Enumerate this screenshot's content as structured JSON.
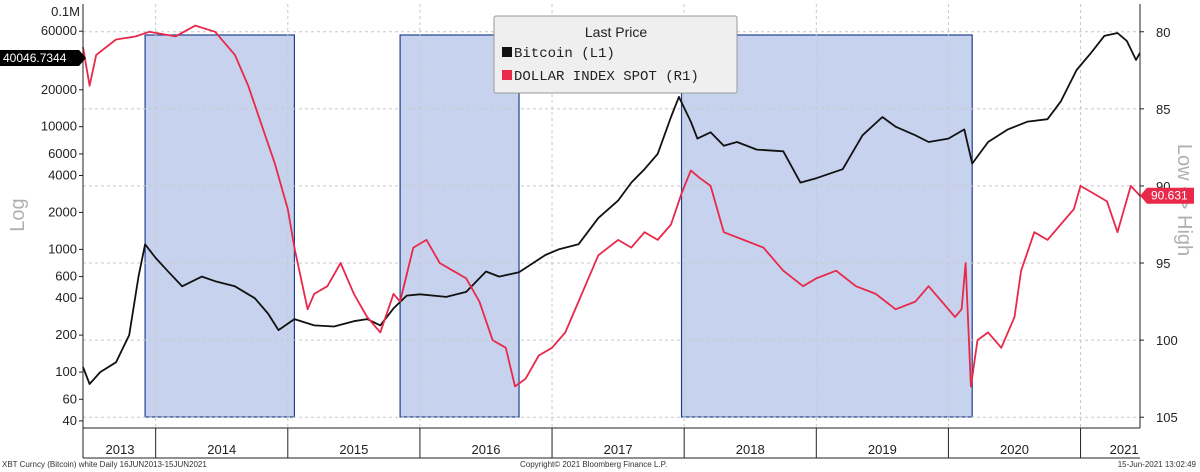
{
  "chart_data": {
    "type": "line",
    "title": "Last Price",
    "y_left_label": "Log",
    "y_right_label": "Low <> High",
    "y_left_top_label": "0.1M",
    "y_left_ticks": [
      40,
      60,
      100,
      200,
      400,
      600,
      1000,
      2000,
      4000,
      6000,
      10000,
      20000,
      60000
    ],
    "y_left_tick_labels": [
      "40",
      "60",
      "100",
      "200",
      "400",
      "600",
      "1000",
      "2000",
      "4000",
      "6000",
      "10000",
      "20000",
      "60000"
    ],
    "y_left_range": [
      35,
      100000
    ],
    "y_right_ticks": [
      80,
      85,
      90,
      95,
      100,
      105
    ],
    "y_right_tick_labels": [
      "80",
      "85",
      "90",
      "95",
      "100",
      "105"
    ],
    "y_right_range": [
      78.2,
      105.7
    ],
    "y_right_inverted": true,
    "x_range": [
      2013.45,
      2021.45
    ],
    "x_year_labels": [
      "2013",
      "2014",
      "2015",
      "2016",
      "2017",
      "2018",
      "2019",
      "2020",
      "2021"
    ],
    "x_year_positions": [
      2013.73,
      2014.5,
      2015.5,
      2016.5,
      2017.5,
      2018.5,
      2019.5,
      2020.5,
      2021.33
    ],
    "x_year_dividers": [
      2014,
      2015,
      2016,
      2017,
      2018,
      2019,
      2020,
      2021
    ],
    "shaded_periods": [
      [
        2013.92,
        2015.05
      ],
      [
        2015.85,
        2016.75
      ],
      [
        2017.98,
        2020.18
      ]
    ],
    "legend": {
      "title": "Last Price",
      "entries": [
        {
          "name": "Bitcoin  (L1)",
          "color": "#111111"
        },
        {
          "name": "DOLLAR INDEX SPOT  (R1)",
          "color": "#e8294a"
        }
      ]
    },
    "last_values": {
      "bitcoin": {
        "label": "40046.7344",
        "value": 40046.7344,
        "color": "#000000"
      },
      "dollar": {
        "label": "90.631",
        "value": 90.631,
        "color": "#e8294a"
      }
    },
    "series": [
      {
        "name": "Bitcoin (L1)",
        "axis": "left",
        "color": "#111111",
        "points": [
          [
            2013.45,
            110
          ],
          [
            2013.5,
            80
          ],
          [
            2013.58,
            100
          ],
          [
            2013.7,
            120
          ],
          [
            2013.8,
            200
          ],
          [
            2013.87,
            600
          ],
          [
            2013.92,
            1100
          ],
          [
            2014.0,
            850
          ],
          [
            2014.1,
            650
          ],
          [
            2014.2,
            500
          ],
          [
            2014.35,
            600
          ],
          [
            2014.45,
            550
          ],
          [
            2014.6,
            500
          ],
          [
            2014.75,
            400
          ],
          [
            2014.85,
            300
          ],
          [
            2014.93,
            220
          ],
          [
            2015.05,
            270
          ],
          [
            2015.2,
            240
          ],
          [
            2015.35,
            235
          ],
          [
            2015.5,
            260
          ],
          [
            2015.6,
            270
          ],
          [
            2015.7,
            240
          ],
          [
            2015.8,
            330
          ],
          [
            2015.9,
            420
          ],
          [
            2016.0,
            430
          ],
          [
            2016.2,
            410
          ],
          [
            2016.35,
            450
          ],
          [
            2016.5,
            660
          ],
          [
            2016.6,
            600
          ],
          [
            2016.75,
            650
          ],
          [
            2016.95,
            900
          ],
          [
            2017.05,
            1000
          ],
          [
            2017.2,
            1100
          ],
          [
            2017.35,
            1800
          ],
          [
            2017.5,
            2500
          ],
          [
            2017.6,
            3500
          ],
          [
            2017.7,
            4500
          ],
          [
            2017.8,
            6000
          ],
          [
            2017.9,
            12000
          ],
          [
            2017.96,
            17500
          ],
          [
            2018.05,
            11000
          ],
          [
            2018.1,
            8000
          ],
          [
            2018.2,
            9000
          ],
          [
            2018.3,
            7000
          ],
          [
            2018.4,
            7500
          ],
          [
            2018.55,
            6500
          ],
          [
            2018.75,
            6300
          ],
          [
            2018.88,
            3500
          ],
          [
            2019.0,
            3800
          ],
          [
            2019.2,
            4500
          ],
          [
            2019.35,
            8500
          ],
          [
            2019.5,
            12000
          ],
          [
            2019.6,
            10000
          ],
          [
            2019.75,
            8500
          ],
          [
            2019.85,
            7500
          ],
          [
            2020.0,
            8000
          ],
          [
            2020.12,
            9500
          ],
          [
            2020.18,
            5000
          ],
          [
            2020.3,
            7500
          ],
          [
            2020.45,
            9500
          ],
          [
            2020.6,
            11000
          ],
          [
            2020.75,
            11500
          ],
          [
            2020.85,
            16000
          ],
          [
            2020.97,
            29000
          ],
          [
            2021.08,
            40000
          ],
          [
            2021.18,
            55000
          ],
          [
            2021.28,
            58000
          ],
          [
            2021.35,
            50000
          ],
          [
            2021.42,
            35000
          ],
          [
            2021.45,
            40046.7344
          ]
        ]
      },
      {
        "name": "DOLLAR INDEX SPOT (R1)",
        "axis": "right",
        "color": "#e8294a",
        "points": [
          [
            2013.45,
            81
          ],
          [
            2013.5,
            83.5
          ],
          [
            2013.55,
            81.5
          ],
          [
            2013.7,
            80.5
          ],
          [
            2013.85,
            80.3
          ],
          [
            2013.95,
            80.0
          ],
          [
            2014.15,
            80.3
          ],
          [
            2014.3,
            79.6
          ],
          [
            2014.45,
            80.0
          ],
          [
            2014.6,
            81.5
          ],
          [
            2014.7,
            83.5
          ],
          [
            2014.8,
            86.0
          ],
          [
            2014.9,
            88.5
          ],
          [
            2015.0,
            91.5
          ],
          [
            2015.05,
            94.0
          ],
          [
            2015.15,
            98.0
          ],
          [
            2015.2,
            97.0
          ],
          [
            2015.3,
            96.5
          ],
          [
            2015.4,
            95.0
          ],
          [
            2015.5,
            97.0
          ],
          [
            2015.6,
            98.5
          ],
          [
            2015.7,
            99.5
          ],
          [
            2015.8,
            97.0
          ],
          [
            2015.85,
            97.5
          ],
          [
            2015.95,
            94.0
          ],
          [
            2016.05,
            93.5
          ],
          [
            2016.15,
            95.0
          ],
          [
            2016.25,
            95.5
          ],
          [
            2016.35,
            96.0
          ],
          [
            2016.45,
            97.5
          ],
          [
            2016.55,
            100.0
          ],
          [
            2016.65,
            100.5
          ],
          [
            2016.72,
            103.0
          ],
          [
            2016.8,
            102.5
          ],
          [
            2016.9,
            101.0
          ],
          [
            2017.0,
            100.5
          ],
          [
            2017.1,
            99.5
          ],
          [
            2017.2,
            97.5
          ],
          [
            2017.35,
            94.5
          ],
          [
            2017.5,
            93.5
          ],
          [
            2017.6,
            94.0
          ],
          [
            2017.7,
            93.0
          ],
          [
            2017.8,
            93.5
          ],
          [
            2017.9,
            92.5
          ],
          [
            2017.98,
            90.5
          ],
          [
            2018.05,
            89.0
          ],
          [
            2018.12,
            89.5
          ],
          [
            2018.2,
            90.0
          ],
          [
            2018.3,
            93.0
          ],
          [
            2018.45,
            93.5
          ],
          [
            2018.6,
            94.0
          ],
          [
            2018.75,
            95.5
          ],
          [
            2018.9,
            96.5
          ],
          [
            2019.0,
            96.0
          ],
          [
            2019.15,
            95.5
          ],
          [
            2019.3,
            96.5
          ],
          [
            2019.45,
            97.0
          ],
          [
            2019.6,
            98.0
          ],
          [
            2019.75,
            97.5
          ],
          [
            2019.85,
            96.5
          ],
          [
            2019.95,
            97.5
          ],
          [
            2020.05,
            98.5
          ],
          [
            2020.1,
            98.0
          ],
          [
            2020.13,
            95.0
          ],
          [
            2020.17,
            103.0
          ],
          [
            2020.22,
            100.0
          ],
          [
            2020.3,
            99.5
          ],
          [
            2020.4,
            100.5
          ],
          [
            2020.5,
            98.5
          ],
          [
            2020.55,
            95.5
          ],
          [
            2020.65,
            93.0
          ],
          [
            2020.75,
            93.5
          ],
          [
            2020.85,
            92.5
          ],
          [
            2020.95,
            91.5
          ],
          [
            2021.0,
            90.0
          ],
          [
            2021.1,
            90.5
          ],
          [
            2021.2,
            91.0
          ],
          [
            2021.28,
            93.0
          ],
          [
            2021.33,
            91.5
          ],
          [
            2021.38,
            90.0
          ],
          [
            2021.45,
            90.631
          ]
        ]
      }
    ]
  },
  "footer": {
    "left": "XBT Curncy (Bitcoin) white  Daily 16JUN2013-15JUN2021",
    "center": "Copyright© 2021 Bloomberg Finance L.P.",
    "right": "15-Jun-2021 13:02:49"
  },
  "colors": {
    "shade_fill": "#c7d3ee",
    "shade_stroke": "#1f3f8f",
    "grid": "#c8c8c8",
    "axis": "#222222",
    "side_label": "#b0b0b0"
  }
}
